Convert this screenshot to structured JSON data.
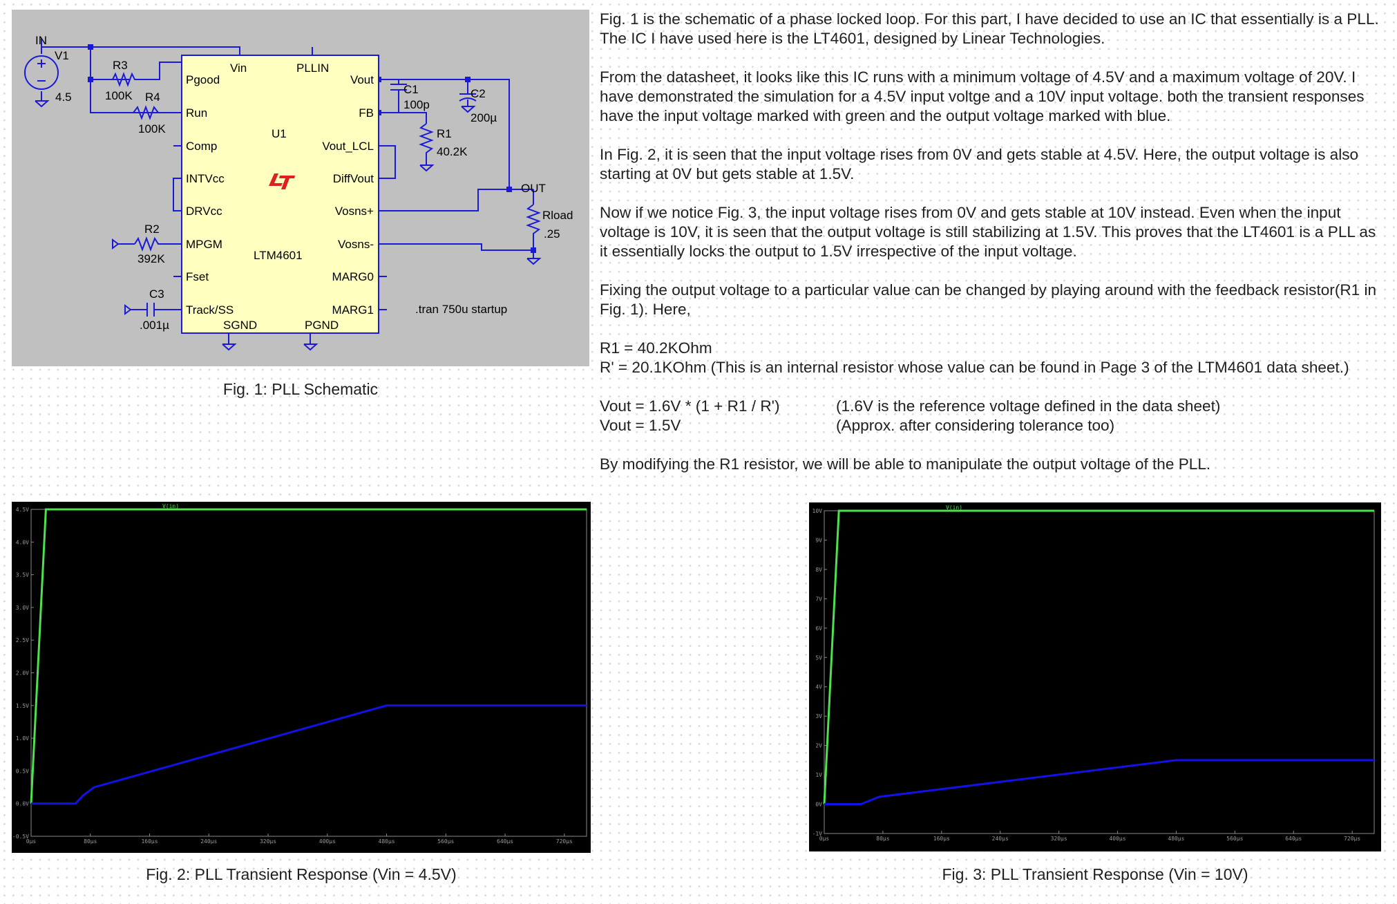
{
  "schematic": {
    "labels": {
      "in": "IN",
      "v1": "V1",
      "v1_value": "4.5",
      "r3": "R3",
      "r3_value": "100K",
      "r4": "R4",
      "r4_value": "100K",
      "r2": "R2",
      "r2_value": "392K",
      "c3": "C3",
      "c3_value": ".001µ",
      "c1": "C1",
      "c1_value": "100p",
      "c2": "C2",
      "c2_value": "200µ",
      "r1": "R1",
      "r1_value": "40.2K",
      "out": "OUT",
      "rload": "Rload",
      "rload_value": ".25",
      "u1": "U1",
      "part": "LTM4601",
      "directive": ".tran 750u startup",
      "pin_vin": "Vin",
      "pin_pllin": "PLLIN",
      "pin_pgood": "Pgood",
      "pin_run": "Run",
      "pin_comp": "Comp",
      "pin_intvcc": "INTVcc",
      "pin_drvcc": "DRVcc",
      "pin_mpgm": "MPGM",
      "pin_fset": "Fset",
      "pin_track": "Track/SS",
      "pin_sgnd": "SGND",
      "pin_pgnd": "PGND",
      "pin_vout": "Vout",
      "pin_fb": "FB",
      "pin_vout_lcl": "Vout_LCL",
      "pin_diffvout": "DiffVout",
      "pin_vosnsp": "Vosns+",
      "pin_vosnsn": "Vosns-",
      "pin_marg0": "MARG0",
      "pin_marg1": "MARG1"
    },
    "caption": "Fig. 1: PLL Schematic"
  },
  "text": {
    "p1": "Fig. 1 is the schematic of a phase locked loop. For this part, I have decided to use an IC that essentially is a PLL. The IC I have used here is the LT4601, designed by Linear Technologies.",
    "p2": "From the datasheet, it looks like this IC runs with a minimum voltage of 4.5V and a maximum voltage of 20V. I have demonstrated the simulation for a 4.5V input voltge and a 10V input voltage.  both the transient responses have the input voltage marked with green and the output voltage marked with blue.",
    "p3": "In Fig. 2, it is seen that the input voltage rises from 0V and gets stable at 4.5V. Here, the output voltage is also starting at 0V but gets stable at 1.5V.",
    "p4": "Now if we notice Fig. 3, the input voltage rises from 0V and gets stable at 10V instead. Even when the input voltage is 10V, it is seen that the output voltage is still stabilizing at 1.5V. This proves that the LT4601 is a PLL as it essentially locks the output to 1.5V irrespective of the input voltage.",
    "p5": "Fixing the output voltage to a particular value can be changed by playing around with the feedback resistor(R1 in Fig. 1).  Here,",
    "r1": "R1 = 40.2KOhm",
    "rprime": "R' = 20.1KOhm (This is an internal resistor whose value can be found in Page 3 of the LTM4601 data sheet.)",
    "eq1": "Vout = 1.6V * (1 + R1 / R')",
    "eq1_note": "(1.6V is the reference voltage defined in the data sheet)",
    "eq2": "Vout = 1.5V",
    "eq2_note": "(Approx. after considering tolerance too)",
    "p6": "By modifying the R1 resistor, we will be able to manipulate the output voltage of the PLL."
  },
  "colors": {
    "input_trace": "#4fe04f",
    "output_trace": "#1212e6",
    "schematic_wire": "#1a1ad6",
    "ic_fill": "#ffffc0",
    "lt_logo": "#e02020"
  },
  "chart_data": [
    {
      "type": "line",
      "title": "",
      "caption": "Fig. 2: PLL Transient Response (Vin = 4.5V)",
      "xlabel": "",
      "ylabel": "",
      "xlim": [
        0,
        750
      ],
      "ylim": [
        -0.5,
        4.5
      ],
      "x_ticks": [
        "0µs",
        "80µs",
        "160µs",
        "240µs",
        "320µs",
        "400µs",
        "480µs",
        "560µs",
        "640µs",
        "720µs"
      ],
      "y_ticks": [
        "-0.5V",
        "0.0V",
        "0.5V",
        "1.0V",
        "1.5V",
        "2.0V",
        "2.5V",
        "3.0V",
        "3.5V",
        "4.0V",
        "4.5V"
      ],
      "y_tick_values": [
        -0.5,
        0,
        0.5,
        1,
        1.5,
        2,
        2.5,
        3,
        3.5,
        4,
        4.5
      ],
      "x_tick_values": [
        0,
        80,
        160,
        240,
        320,
        400,
        480,
        560,
        640,
        720
      ],
      "series": [
        {
          "name": "V(in)",
          "color": "#4fe04f",
          "x": [
            0,
            20,
            750
          ],
          "y": [
            0,
            4.5,
            4.5
          ]
        },
        {
          "name": "",
          "color": "#1212e6",
          "x": [
            0,
            60,
            70,
            85,
            480,
            750
          ],
          "y": [
            0,
            0,
            0.12,
            0.25,
            1.5,
            1.5
          ]
        }
      ]
    },
    {
      "type": "line",
      "title": "",
      "caption": "Fig. 3: PLL Transient Response (Vin = 10V)",
      "xlabel": "",
      "ylabel": "",
      "xlim": [
        0,
        750
      ],
      "ylim": [
        -1,
        10
      ],
      "x_ticks": [
        "0µs",
        "80µs",
        "160µs",
        "240µs",
        "320µs",
        "400µs",
        "480µs",
        "560µs",
        "640µs",
        "720µs"
      ],
      "y_ticks": [
        "-1V",
        "0V",
        "1V",
        "2V",
        "3V",
        "4V",
        "5V",
        "6V",
        "7V",
        "8V",
        "9V",
        "10V"
      ],
      "y_tick_values": [
        -1,
        0,
        1,
        2,
        3,
        4,
        5,
        6,
        7,
        8,
        9,
        10
      ],
      "x_tick_values": [
        0,
        80,
        160,
        240,
        320,
        400,
        480,
        560,
        640,
        720
      ],
      "series": [
        {
          "name": "V(in)",
          "color": "#4fe04f",
          "x": [
            0,
            20,
            750
          ],
          "y": [
            0,
            10,
            10
          ]
        },
        {
          "name": "",
          "color": "#1212e6",
          "x": [
            0,
            50,
            75,
            480,
            750
          ],
          "y": [
            0,
            0,
            0.25,
            1.5,
            1.5
          ]
        }
      ]
    }
  ]
}
